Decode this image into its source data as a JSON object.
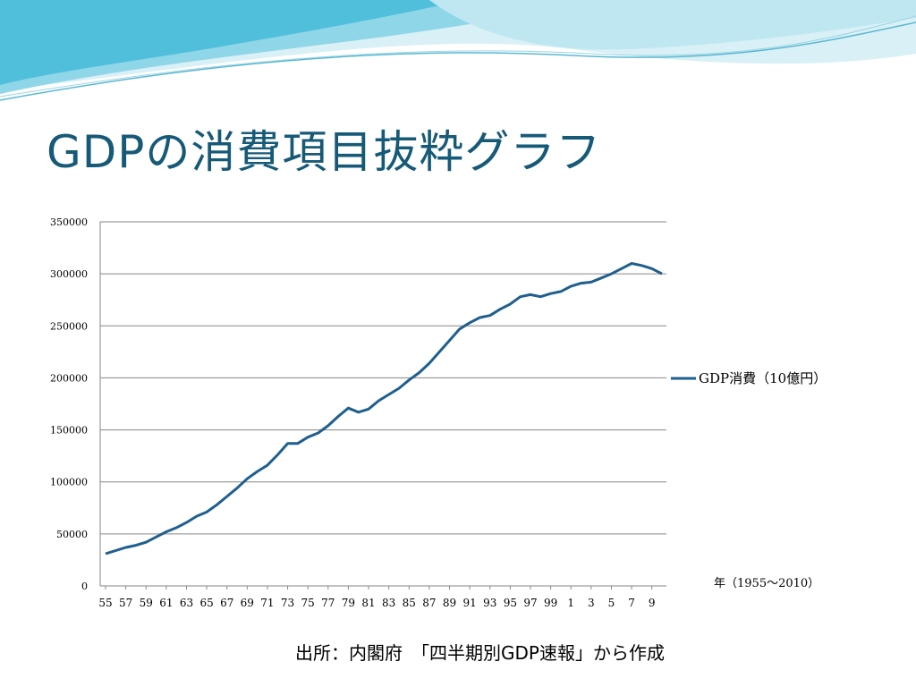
{
  "slide": {
    "title": "GDPの消費項目抜粋グラフ",
    "source_note": "出所：内閣府　「四半期別GDP速報」から作成"
  },
  "colors": {
    "title": "#165a78",
    "series_line": "#1f5f8f",
    "wave_light": "#bfe6f1",
    "wave_mid": "#7dcfe4",
    "wave_dark": "#3fb6d4"
  },
  "chart_data": {
    "type": "line",
    "title": "",
    "xlabel": "年（1955～2010）",
    "ylabel": "",
    "ylim": [
      0,
      350000
    ],
    "y_ticks": [
      "0",
      "50000",
      "100000",
      "150000",
      "200000",
      "250000",
      "300000",
      "350000"
    ],
    "y_tick_values": [
      0,
      50000,
      100000,
      150000,
      200000,
      250000,
      300000,
      350000
    ],
    "grid": true,
    "legend_position": "right",
    "x_tick_labels": [
      "55",
      "57",
      "59",
      "61",
      "63",
      "65",
      "67",
      "69",
      "71",
      "73",
      "75",
      "77",
      "79",
      "81",
      "83",
      "85",
      "87",
      "89",
      "91",
      "93",
      "95",
      "97",
      "99",
      "1",
      "3",
      "5",
      "7",
      "9"
    ],
    "x": [
      1955,
      1956,
      1957,
      1958,
      1959,
      1960,
      1961,
      1962,
      1963,
      1964,
      1965,
      1966,
      1967,
      1968,
      1969,
      1970,
      1971,
      1972,
      1973,
      1974,
      1975,
      1976,
      1977,
      1978,
      1979,
      1980,
      1981,
      1982,
      1983,
      1984,
      1985,
      1986,
      1987,
      1988,
      1989,
      1990,
      1991,
      1992,
      1993,
      1994,
      1995,
      1996,
      1997,
      1998,
      1999,
      2000,
      2001,
      2002,
      2003,
      2004,
      2005,
      2006,
      2007,
      2008,
      2009,
      2010
    ],
    "series": [
      {
        "name": "GDP消費（10億円）",
        "values": [
          31000,
          34000,
          37000,
          39000,
          42000,
          47000,
          52000,
          56000,
          61000,
          67000,
          71000,
          78000,
          86000,
          94000,
          103000,
          110000,
          116000,
          126000,
          137000,
          137000,
          143000,
          147000,
          154000,
          163000,
          171000,
          167000,
          170000,
          178000,
          184000,
          190000,
          198000,
          205000,
          214000,
          225000,
          236000,
          247000,
          253000,
          258000,
          260000,
          266000,
          271000,
          278000,
          280000,
          278000,
          281000,
          283000,
          288000,
          291000,
          292000,
          296000,
          300000,
          305000,
          310000,
          308000,
          305000,
          300000
        ]
      }
    ]
  }
}
